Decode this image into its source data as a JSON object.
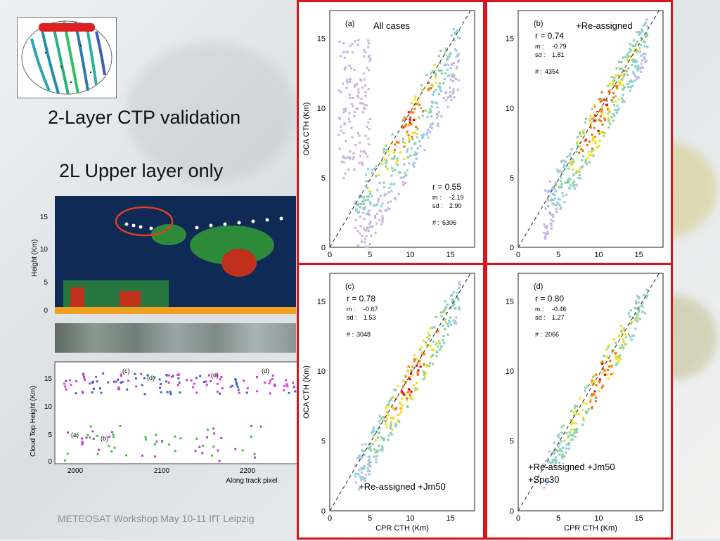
{
  "slide": {
    "title": "2-Layer CTP validation",
    "subtitle": "2L Upper layer only",
    "footer": "METEOSAT Workshop May 10-11 IfT Leipzig"
  },
  "curtain": {
    "ylabel": "Height (Km)",
    "yticks": [
      "0",
      "5",
      "10",
      "15"
    ]
  },
  "ctp_plot": {
    "ylabel": "Cloud Top Height (Km)",
    "xlabel": "Along track pixel",
    "yticks": [
      "0",
      "5",
      "10",
      "15"
    ],
    "xticks": [
      "2000",
      "2100",
      "2200"
    ],
    "labels": [
      "(c)",
      "(d)",
      "(d)",
      "(d)",
      "(a)",
      "(b)"
    ]
  },
  "panels": [
    {
      "letter": "(a)",
      "caption": "All cases",
      "r": "r = 0.55",
      "m_label": "m :",
      "m": "-2.19",
      "sd_label": "sd :",
      "sd": "2.90",
      "n_label": "# :",
      "n": "6306",
      "ylabel": "OCA CTH (Km)",
      "xlabel": "",
      "yticks": [
        "0",
        "5",
        "10",
        "15"
      ],
      "xticks": [
        "0",
        "5",
        "10",
        "15"
      ]
    },
    {
      "letter": "(b)",
      "caption": "+Re-assigned",
      "r": "r = 0.74",
      "m_label": "m :",
      "m": "-0.79",
      "sd_label": "sd :",
      "sd": "1.81",
      "n_label": "# :",
      "n": "4354",
      "ylabel": "",
      "xlabel": "",
      "yticks": [
        "0",
        "5",
        "10",
        "15"
      ],
      "xticks": [
        "0",
        "5",
        "10",
        "15"
      ]
    },
    {
      "letter": "(c)",
      "caption": "+Re-assigned +Jm50",
      "r": "r = 0.78",
      "m_label": "m :",
      "m": "-0.67",
      "sd_label": "sd :",
      "sd": "1.53",
      "n_label": "# :",
      "n": "3048",
      "ylabel": "OCA CTH (Km)",
      "xlabel": "CPR CTH (Km)",
      "yticks": [
        "0",
        "5",
        "10",
        "15"
      ],
      "xticks": [
        "0",
        "5",
        "10",
        "15"
      ]
    },
    {
      "letter": "(d)",
      "caption": "+Re-assigned +Jm50\n+Spc30",
      "r": "r = 0.80",
      "m_label": "m :",
      "m": "-0.46",
      "sd_label": "sd :",
      "sd": "1.27",
      "n_label": "# :",
      "n": "2066",
      "ylabel": "",
      "xlabel": "CPR CTH (Km)",
      "yticks": [
        "0",
        "5",
        "10",
        "15"
      ],
      "xticks": [
        "0",
        "5",
        "10",
        "15"
      ]
    }
  ],
  "colors": {
    "frame": "#d9151b",
    "density_high": "#e0121b",
    "density_mid": "#f0e020",
    "density_low": "#8fd0e0"
  }
}
